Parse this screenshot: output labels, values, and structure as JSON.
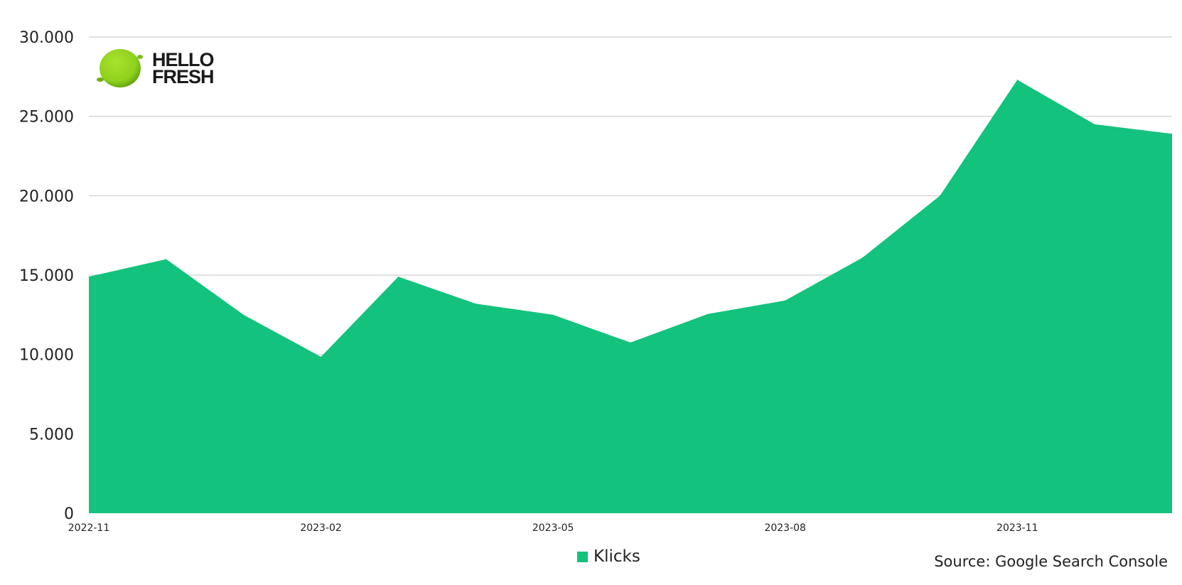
{
  "brand": {
    "logo_line1": "HELLO",
    "logo_line2": "FRESH",
    "logo_color": "#91D31E"
  },
  "source_note": "Source: Google Search Console",
  "chart_data": {
    "type": "area",
    "x": [
      "2022-11",
      "2022-12",
      "2023-01",
      "2023-02",
      "2023-03",
      "2023-04",
      "2023-05",
      "2023-06",
      "2023-07",
      "2023-08",
      "2023-09",
      "2023-10",
      "2023-11",
      "2023-12",
      "2024-01"
    ],
    "x_tick_labels": [
      "2022-11",
      "2023-02",
      "2023-05",
      "2023-08",
      "2023-11"
    ],
    "series": [
      {
        "name": "Klicks",
        "color": "#13C27C",
        "values": [
          14900,
          16000,
          12500,
          9850,
          14900,
          13200,
          12500,
          10750,
          12550,
          13400,
          16100,
          20000,
          27300,
          24500,
          23900
        ]
      }
    ],
    "y_ticks": [
      0,
      5000,
      10000,
      15000,
      20000,
      25000,
      30000
    ],
    "y_tick_labels": [
      "0",
      "5.000",
      "10.000",
      "15.000",
      "20.000",
      "25.000",
      "30.000"
    ],
    "ylim": [
      0,
      30000
    ],
    "grid": true,
    "legend_position": "bottom"
  }
}
